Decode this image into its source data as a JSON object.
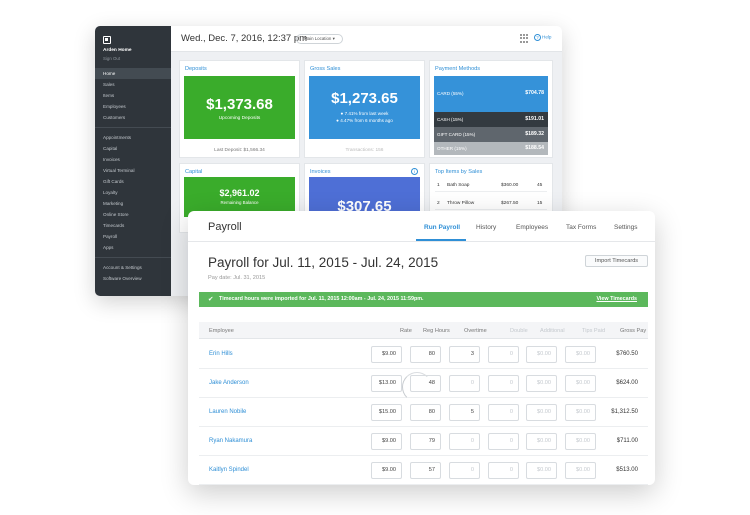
{
  "dashboard": {
    "account_name": "Arden Home",
    "account_sub": "Sign Out",
    "nav_primary": [
      "Home",
      "Sales",
      "Items",
      "Employees",
      "Customers"
    ],
    "nav_secondary": [
      "Appointments",
      "Capital",
      "Invoices",
      "Virtual Terminal",
      "Gift Cards",
      "Loyalty",
      "Marketing",
      "Online Store",
      "Timecards",
      "Payroll",
      "Apps"
    ],
    "nav_footer": [
      "Account & Settings",
      "Software Overview"
    ],
    "date": "Wed., Dec. 7, 2016, 12:37 pm",
    "location": "Main Location",
    "help": "Help",
    "deposits": {
      "title": "Deposits",
      "amount": "$1,373.68",
      "subtitle": "Upcoming Deposits",
      "footer": "Last Deposit: $1,566.34",
      "color": "#3aac2b"
    },
    "gross_sales": {
      "title": "Gross Sales",
      "amount": "$1,273.65",
      "line1": "7.41% from last week",
      "line2": "4.47% from 6 months ago",
      "footer": "Transactions: 156",
      "color": "#3592d9"
    },
    "payment_methods": {
      "title": "Payment Methods",
      "rows": [
        {
          "label": "CARD (55%)",
          "value": "$704.78",
          "color": "#3592d9"
        },
        {
          "label": "CASH (15%)",
          "value": "$191.01",
          "color": "#333a40"
        },
        {
          "label": "GIFT CARD (15%)",
          "value": "$189.32",
          "color": "#5f666d"
        },
        {
          "label": "OTHER (15%)",
          "value": "$188.54",
          "color": "#b3b8bc"
        }
      ]
    },
    "capital": {
      "title": "Capital",
      "amount": "$2,961.02",
      "subtitle": "Remaining Balance",
      "color": "#3aac2b"
    },
    "invoices": {
      "title": "Invoices",
      "amount": "$307.65",
      "color": "#4e6fd6",
      "info_icon": "info-icon"
    },
    "top_items": {
      "title": "Top Items by Sales",
      "rows": [
        {
          "rank": "1",
          "name": "Bath Soap",
          "sales": "$360.00",
          "qty": "45"
        },
        {
          "rank": "2",
          "name": "Throw Pillow",
          "sales": "$267.50",
          "qty": "15"
        }
      ]
    }
  },
  "payroll": {
    "title": "Payroll",
    "tabs": [
      "Run Payroll",
      "History",
      "Employees",
      "Tax Forms",
      "Settings"
    ],
    "active_tab": "Run Payroll",
    "period": "Payroll for Jul. 11, 2015 - Jul. 24, 2015",
    "pay_date": "Pay date: Jul. 31, 2015",
    "import_button": "Import Timecards",
    "banner": {
      "message": "Timecard hours were imported for Jul. 11, 2015 12:00am - Jul. 24, 2015 11:59pm.",
      "link": "View Timecards",
      "color": "#5cb85c"
    },
    "columns": [
      "Employee",
      "Rate",
      "Reg Hours",
      "Overtime",
      "Double",
      "Additional",
      "Tips Paid",
      "Gross Pay"
    ],
    "rows": [
      {
        "employee": "Erin Hills",
        "rate": "$9.00",
        "reg": "80",
        "overtime": "3",
        "double": "0",
        "additional": "$0.00",
        "tips": "$0.00",
        "gross": "$760.50"
      },
      {
        "employee": "Jake Anderson",
        "rate": "$13.00",
        "reg": "48",
        "overtime": "0",
        "double": "0",
        "additional": "$0.00",
        "tips": "$0.00",
        "gross": "$624.00"
      },
      {
        "employee": "Lauren Nobile",
        "rate": "$15.00",
        "reg": "80",
        "overtime": "5",
        "double": "0",
        "additional": "$0.00",
        "tips": "$0.00",
        "gross": "$1,312.50"
      },
      {
        "employee": "Ryan Nakamura",
        "rate": "$9.00",
        "reg": "79",
        "overtime": "0",
        "double": "0",
        "additional": "$0.00",
        "tips": "$0.00",
        "gross": "$711.00"
      },
      {
        "employee": "Kaitlyn Spindel",
        "rate": "$9.00",
        "reg": "57",
        "overtime": "0",
        "double": "0",
        "additional": "$0.00",
        "tips": "$0.00",
        "gross": "$513.00"
      }
    ]
  }
}
